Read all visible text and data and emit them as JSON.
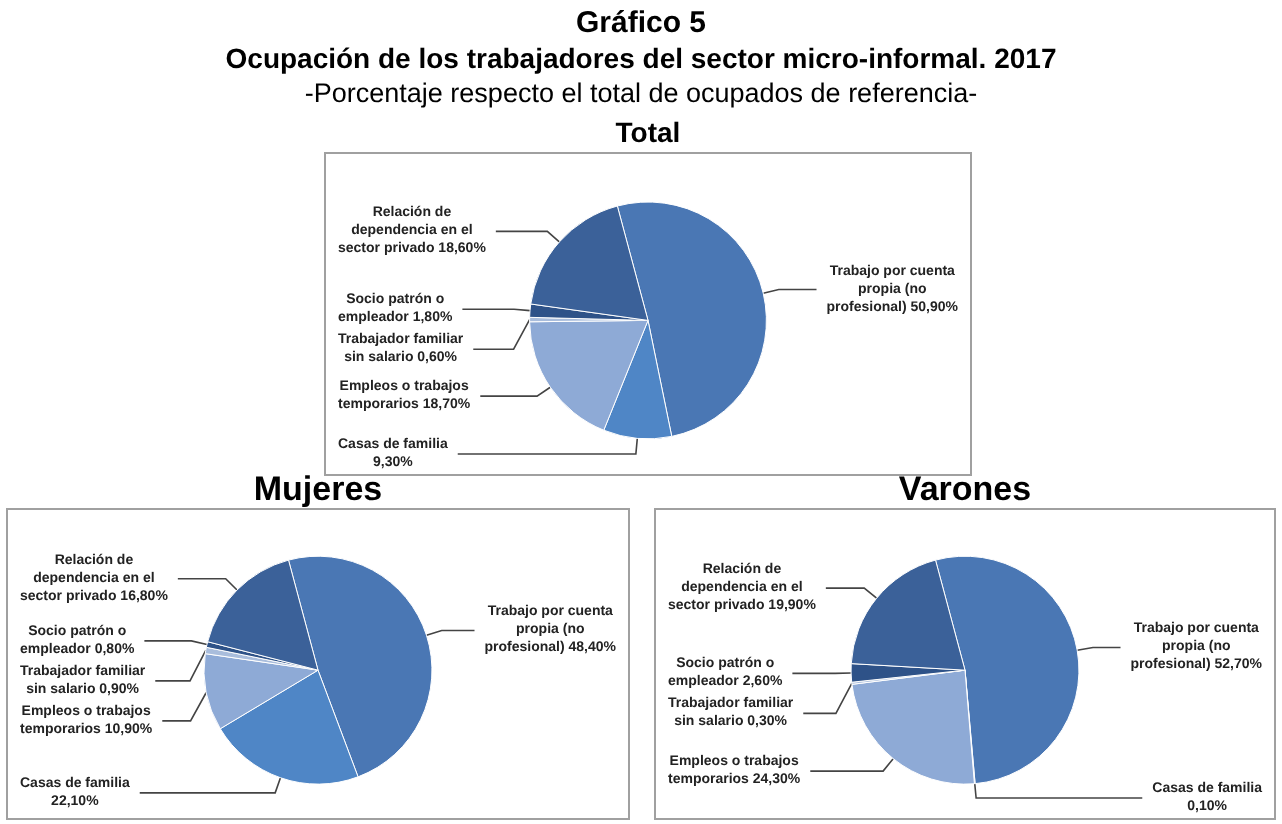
{
  "chart_data": [
    {
      "type": "other",
      "title": "Gráfico 5",
      "subtitle": "Ocupación de los trabajadores del sector micro-informal. 2017",
      "annotations": [
        "-Porcentaje respecto el total de ocupados de referencia-"
      ]
    },
    {
      "type": "pie",
      "title": "Total",
      "categories": [
        "Trabajo por cuenta propia (no profesional)",
        "Casas de familia",
        "Empleos o trabajos temporarios",
        "Trabajador familiar sin salario",
        "Socio patrón o empleador",
        "Relación de dependencia en el sector privado"
      ],
      "values": [
        50.9,
        9.3,
        18.7,
        0.6,
        1.8,
        18.6
      ],
      "value_labels": [
        "50,90%",
        "9,30%",
        "18,70%",
        "0,60%",
        "1,80%",
        "18,60%"
      ],
      "colors": [
        "#4a77b4",
        "#4f86c6",
        "#8eaad6",
        "#a9bddc",
        "#2e5288",
        "#3b6199"
      ]
    },
    {
      "type": "pie",
      "title": "Mujeres",
      "categories": [
        "Trabajo por cuenta propia (no profesional)",
        "Casas de familia",
        "Empleos o trabajos temporarios",
        "Trabajador familiar sin salario",
        "Socio patrón o empleador",
        "Relación de dependencia en el sector privado"
      ],
      "values": [
        48.4,
        22.1,
        10.9,
        0.9,
        0.8,
        16.8
      ],
      "value_labels": [
        "48,40%",
        "22,10%",
        "10,90%",
        "0,90%",
        "0,80%",
        "16,80%"
      ],
      "colors": [
        "#4a77b4",
        "#4f86c6",
        "#8eaad6",
        "#a9bddc",
        "#2e5288",
        "#3b6199"
      ]
    },
    {
      "type": "pie",
      "title": "Varones",
      "categories": [
        "Trabajo por cuenta propia (no profesional)",
        "Casas de familia",
        "Empleos o trabajos temporarios",
        "Trabajador familiar sin salario",
        "Socio patrón o empleador",
        "Relación de dependencia en el sector privado"
      ],
      "values": [
        52.7,
        0.1,
        24.3,
        0.3,
        2.6,
        19.9
      ],
      "value_labels": [
        "52,70%",
        "0,10%",
        "24,30%",
        "0,30%",
        "2,60%",
        "19,90%"
      ],
      "colors": [
        "#4a77b4",
        "#4f86c6",
        "#8eaad6",
        "#a9bddc",
        "#2e5288",
        "#3b6199"
      ]
    }
  ]
}
